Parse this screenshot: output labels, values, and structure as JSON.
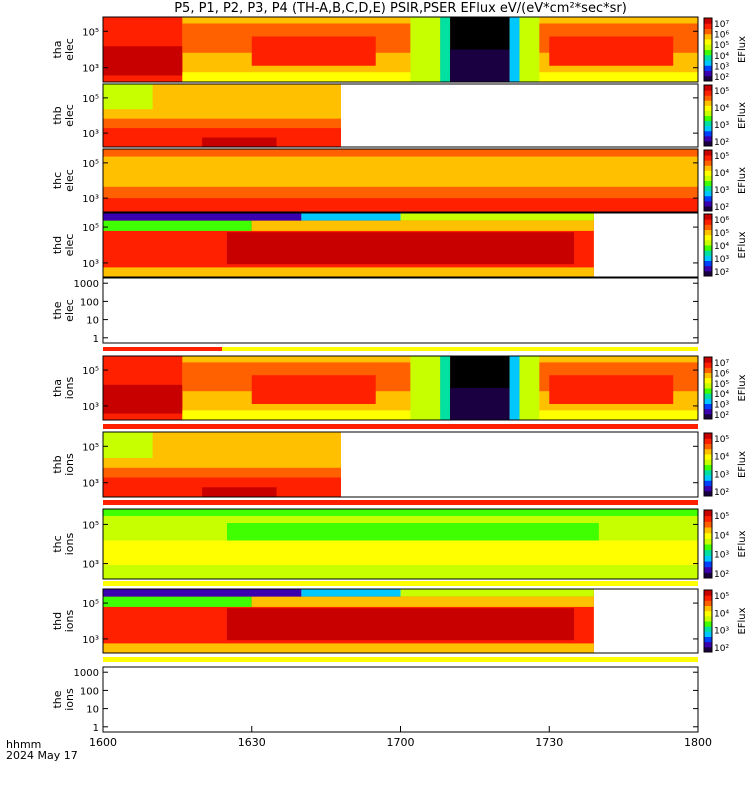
{
  "title": "P5, P1, P2, P3, P4 (TH-A,B,C,D,E) PSIR,PSER EFlux eV/(eV*cm²*sec*sr)",
  "x_unit_label": "hhmm",
  "date_label": "2024 May 17",
  "colorbar_label": "EFlux",
  "chart_data": {
    "type": "heatmap",
    "x_range": [
      "16:00",
      "18:00"
    ],
    "x_ticks": [
      "1600",
      "1630",
      "1700",
      "1730",
      "1800"
    ],
    "y_scale": "log",
    "panels": [
      {
        "id": "tha-elec",
        "ylabel": [
          "tha",
          "elec"
        ],
        "y_tick_labels": [
          "10⁵",
          "10³"
        ],
        "data_end": "18:00",
        "colorbar": [
          "10⁷",
          "10⁶",
          "10⁵",
          "10⁴",
          "10³",
          "10²"
        ]
      },
      {
        "id": "thb-elec",
        "ylabel": [
          "thb",
          "elec"
        ],
        "y_tick_labels": [
          "10⁵",
          "10³"
        ],
        "data_end": "16:48",
        "colorbar": [
          "10⁵",
          "10⁴",
          "10³",
          "10²"
        ]
      },
      {
        "id": "thc-elec",
        "ylabel": [
          "thc",
          "elec"
        ],
        "y_tick_labels": [
          "10⁵",
          "10³"
        ],
        "data_end": "18:00",
        "colorbar": [
          "10⁵",
          "10⁴",
          "10³",
          "10²"
        ]
      },
      {
        "id": "thd-elec",
        "ylabel": [
          "thd",
          "elec"
        ],
        "y_tick_labels": [
          "10⁵",
          "10³"
        ],
        "data_end": "17:39",
        "colorbar": [
          "10⁶",
          "10⁵",
          "10⁴",
          "10³",
          "10²"
        ]
      },
      {
        "id": "the-elec",
        "ylabel": [
          "the",
          "elec"
        ],
        "y_tick_labels": [
          "1000",
          "100",
          "10",
          "1"
        ],
        "data_end": "none",
        "colorbar": []
      },
      {
        "id": "tha-ions",
        "ylabel": [
          "tha",
          "ions"
        ],
        "y_tick_labels": [
          "10⁵",
          "10³"
        ],
        "data_end": "18:00",
        "colorbar": [
          "10⁷",
          "10⁶",
          "10⁵",
          "10⁴",
          "10³",
          "10²"
        ]
      },
      {
        "id": "thb-ions",
        "ylabel": [
          "thb",
          "ions"
        ],
        "y_tick_labels": [
          "10⁵",
          "10³"
        ],
        "data_end": "16:48",
        "colorbar": [
          "10⁵",
          "10⁴",
          "10³",
          "10²"
        ]
      },
      {
        "id": "thc-ions",
        "ylabel": [
          "thc",
          "ions"
        ],
        "y_tick_labels": [
          "10⁵",
          "10³"
        ],
        "data_end": "18:00",
        "colorbar": [
          "10⁵",
          "10⁴",
          "10³",
          "10²"
        ]
      },
      {
        "id": "thd-ions",
        "ylabel": [
          "thd",
          "ions"
        ],
        "y_tick_labels": [
          "10⁵",
          "10³"
        ],
        "data_end": "17:39",
        "colorbar": [
          "10⁵",
          "10⁴",
          "10³",
          "10²"
        ]
      },
      {
        "id": "the-ions",
        "ylabel": [
          "the",
          "ions"
        ],
        "y_tick_labels": [
          "1000",
          "100",
          "10",
          "1"
        ],
        "data_end": "none",
        "colorbar": []
      }
    ],
    "colormap": [
      "#1a0040",
      "#3a00b0",
      "#0040ff",
      "#00c8ff",
      "#00e0a0",
      "#40ff00",
      "#c8ff00",
      "#ffff00",
      "#ffc000",
      "#ff6000",
      "#ff2000",
      "#c80000"
    ]
  }
}
